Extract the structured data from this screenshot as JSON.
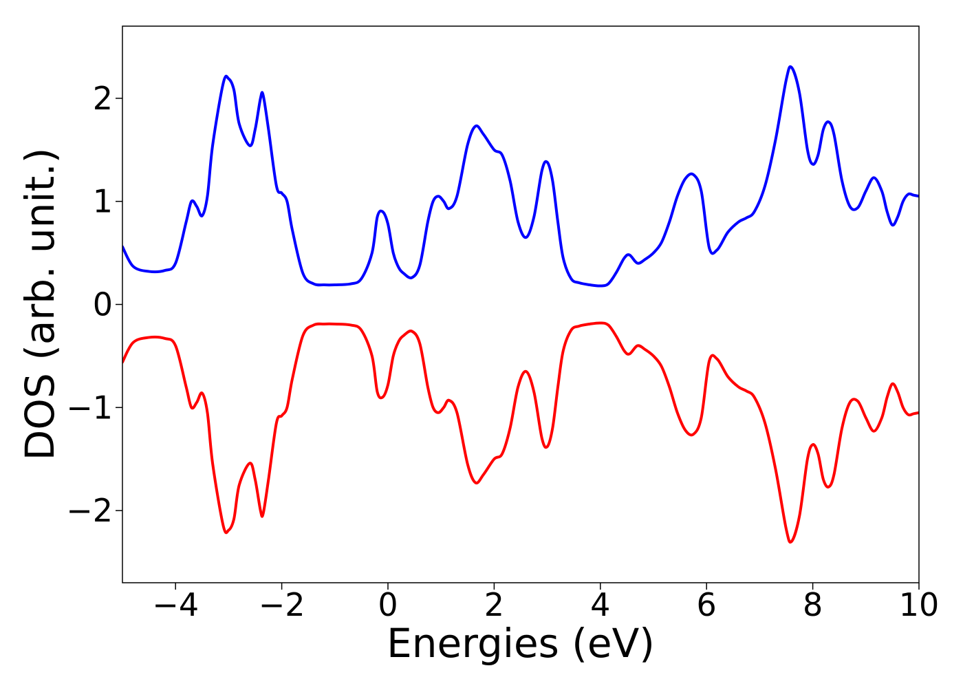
{
  "chart_data": {
    "type": "line",
    "title": "",
    "xlabel": "Energies (eV)",
    "ylabel": "DOS (arb. unit.)",
    "xlim": [
      -5,
      10
    ],
    "ylim": [
      -2.7,
      2.7
    ],
    "grid": false,
    "x_ticks": [
      -4,
      -2,
      0,
      2,
      4,
      6,
      8,
      10
    ],
    "x_tick_labels": [
      "−4",
      "−2",
      "0",
      "2",
      "4",
      "6",
      "8",
      "10"
    ],
    "y_ticks": [
      -2,
      -1,
      0,
      1,
      2
    ],
    "y_tick_labels": [
      "−2",
      "−1",
      "0",
      "1",
      "2"
    ],
    "series": [
      {
        "color": "#0000ff",
        "x": [
          -5,
          -4.8,
          -4.5,
          -4.2,
          -4.0,
          -3.8,
          -3.7,
          -3.6,
          -3.5,
          -3.4,
          -3.3,
          -3.1,
          -3.0,
          -2.9,
          -2.8,
          -2.6,
          -2.5,
          -2.4,
          -2.35,
          -2.25,
          -2.1,
          -2.0,
          -1.9,
          -1.8,
          -1.6,
          -1.4,
          -1.2,
          -1.0,
          -0.7,
          -0.5,
          -0.3,
          -0.2,
          -0.1,
          0.0,
          0.1,
          0.2,
          0.3,
          0.45,
          0.6,
          0.75,
          0.85,
          0.95,
          1.05,
          1.15,
          1.3,
          1.5,
          1.65,
          1.8,
          2.0,
          2.15,
          2.3,
          2.45,
          2.6,
          2.75,
          2.9,
          3.0,
          3.1,
          3.2,
          3.3,
          3.45,
          3.6,
          3.8,
          4.0,
          4.15,
          4.3,
          4.45,
          4.55,
          4.7,
          4.85,
          5.0,
          5.15,
          5.3,
          5.45,
          5.6,
          5.75,
          5.9,
          6.05,
          6.2,
          6.4,
          6.6,
          6.75,
          6.9,
          7.1,
          7.3,
          7.5,
          7.6,
          7.75,
          7.9,
          8.0,
          8.1,
          8.2,
          8.3,
          8.4,
          8.55,
          8.7,
          8.85,
          9.0,
          9.15,
          9.3,
          9.4,
          9.5,
          9.6,
          9.7,
          9.8,
          9.9,
          10.0
        ],
        "y": [
          0.56,
          0.37,
          0.32,
          0.33,
          0.4,
          0.8,
          1.0,
          0.95,
          0.86,
          1.05,
          1.55,
          2.15,
          2.19,
          2.08,
          1.75,
          1.54,
          1.7,
          2.0,
          2.03,
          1.7,
          1.15,
          1.08,
          1.0,
          0.72,
          0.3,
          0.2,
          0.19,
          0.19,
          0.2,
          0.25,
          0.5,
          0.85,
          0.9,
          0.78,
          0.5,
          0.36,
          0.3,
          0.26,
          0.38,
          0.8,
          1.0,
          1.05,
          1.0,
          0.93,
          1.05,
          1.55,
          1.73,
          1.65,
          1.5,
          1.45,
          1.2,
          0.8,
          0.65,
          0.85,
          1.3,
          1.38,
          1.2,
          0.8,
          0.45,
          0.25,
          0.21,
          0.19,
          0.18,
          0.2,
          0.31,
          0.45,
          0.48,
          0.4,
          0.44,
          0.5,
          0.6,
          0.8,
          1.05,
          1.22,
          1.26,
          1.1,
          0.55,
          0.53,
          0.7,
          0.8,
          0.84,
          0.9,
          1.15,
          1.6,
          2.18,
          2.3,
          2.05,
          1.5,
          1.36,
          1.45,
          1.7,
          1.77,
          1.65,
          1.2,
          0.95,
          0.94,
          1.1,
          1.23,
          1.1,
          0.9,
          0.77,
          0.85,
          1.0,
          1.07,
          1.06,
          1.05
        ]
      },
      {
        "color": "#ff0000",
        "x": [
          -5,
          -4.8,
          -4.5,
          -4.2,
          -4.0,
          -3.8,
          -3.7,
          -3.6,
          -3.5,
          -3.4,
          -3.3,
          -3.1,
          -3.0,
          -2.9,
          -2.8,
          -2.6,
          -2.5,
          -2.4,
          -2.35,
          -2.25,
          -2.1,
          -2.0,
          -1.9,
          -1.8,
          -1.6,
          -1.4,
          -1.2,
          -1.0,
          -0.7,
          -0.5,
          -0.3,
          -0.2,
          -0.1,
          0.0,
          0.1,
          0.2,
          0.3,
          0.45,
          0.6,
          0.75,
          0.85,
          0.95,
          1.05,
          1.15,
          1.3,
          1.5,
          1.65,
          1.8,
          2.0,
          2.15,
          2.3,
          2.45,
          2.6,
          2.75,
          2.9,
          3.0,
          3.1,
          3.2,
          3.3,
          3.45,
          3.6,
          3.8,
          4.0,
          4.15,
          4.3,
          4.45,
          4.55,
          4.7,
          4.85,
          5.0,
          5.15,
          5.3,
          5.45,
          5.6,
          5.75,
          5.9,
          6.05,
          6.2,
          6.4,
          6.6,
          6.75,
          6.9,
          7.1,
          7.3,
          7.5,
          7.6,
          7.75,
          7.9,
          8.0,
          8.1,
          8.2,
          8.3,
          8.4,
          8.55,
          8.7,
          8.85,
          9.0,
          9.15,
          9.3,
          9.4,
          9.5,
          9.6,
          9.7,
          9.8,
          9.9,
          10.0
        ],
        "y": [
          -0.56,
          -0.37,
          -0.32,
          -0.33,
          -0.4,
          -0.8,
          -1.0,
          -0.95,
          -0.86,
          -1.05,
          -1.55,
          -2.15,
          -2.19,
          -2.08,
          -1.75,
          -1.54,
          -1.7,
          -2.0,
          -2.03,
          -1.7,
          -1.15,
          -1.08,
          -1.0,
          -0.72,
          -0.3,
          -0.2,
          -0.19,
          -0.19,
          -0.2,
          -0.25,
          -0.5,
          -0.85,
          -0.9,
          -0.78,
          -0.5,
          -0.36,
          -0.3,
          -0.26,
          -0.38,
          -0.8,
          -1.0,
          -1.05,
          -1.0,
          -0.93,
          -1.05,
          -1.55,
          -1.73,
          -1.65,
          -1.5,
          -1.45,
          -1.2,
          -0.8,
          -0.65,
          -0.85,
          -1.3,
          -1.38,
          -1.2,
          -0.8,
          -0.45,
          -0.25,
          -0.21,
          -0.19,
          -0.18,
          -0.2,
          -0.31,
          -0.45,
          -0.48,
          -0.4,
          -0.44,
          -0.5,
          -0.6,
          -0.8,
          -1.05,
          -1.22,
          -1.26,
          -1.1,
          -0.55,
          -0.53,
          -0.7,
          -0.8,
          -0.84,
          -0.9,
          -1.15,
          -1.6,
          -2.18,
          -2.3,
          -2.05,
          -1.5,
          -1.36,
          -1.45,
          -1.7,
          -1.77,
          -1.65,
          -1.2,
          -0.95,
          -0.94,
          -1.1,
          -1.23,
          -1.1,
          -0.9,
          -0.77,
          -0.85,
          -1.0,
          -1.07,
          -1.06,
          -1.05
        ]
      }
    ]
  }
}
